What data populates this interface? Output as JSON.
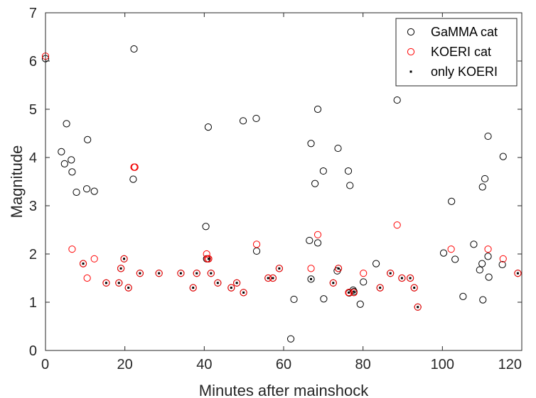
{
  "chart_data": {
    "type": "scatter",
    "xlabel": "Minutes after mainshock",
    "ylabel": "Magnitude",
    "xlim": [
      0,
      120
    ],
    "ylim": [
      0,
      7
    ],
    "xticks": [
      0,
      20,
      40,
      60,
      80,
      100,
      120
    ],
    "yticks": [
      0,
      1,
      2,
      3,
      4,
      5,
      6,
      7
    ],
    "grid": false,
    "legend_position": "top-right",
    "series": [
      {
        "name": "GaMMA cat",
        "marker": "open-circle",
        "color": "#000000",
        "points": [
          [
            0,
            6.05
          ],
          [
            4,
            4.12
          ],
          [
            4.8,
            3.87
          ],
          [
            5.3,
            4.7
          ],
          [
            6.5,
            3.95
          ],
          [
            6.7,
            3.7
          ],
          [
            7.8,
            3.28
          ],
          [
            9.5,
            1.8
          ],
          [
            10.4,
            3.35
          ],
          [
            10.6,
            4.37
          ],
          [
            12.3,
            3.3
          ],
          [
            15.3,
            1.4
          ],
          [
            18.5,
            1.4
          ],
          [
            19,
            1.7
          ],
          [
            19.8,
            1.9
          ],
          [
            20.9,
            1.3
          ],
          [
            22.1,
            3.55
          ],
          [
            22.3,
            6.25
          ],
          [
            22.5,
            3.8
          ],
          [
            23.8,
            1.6
          ],
          [
            28.6,
            1.6
          ],
          [
            34.1,
            1.6
          ],
          [
            37.2,
            1.3
          ],
          [
            38.1,
            1.6
          ],
          [
            40.4,
            2.57
          ],
          [
            40.6,
            1.9
          ],
          [
            41,
            4.63
          ],
          [
            41.1,
            1.9
          ],
          [
            41.7,
            1.6
          ],
          [
            43.4,
            1.4
          ],
          [
            46.8,
            1.3
          ],
          [
            48.2,
            1.4
          ],
          [
            49.8,
            4.76
          ],
          [
            49.9,
            1.2
          ],
          [
            53.1,
            4.81
          ],
          [
            53.2,
            2.06
          ],
          [
            56.1,
            1.5
          ],
          [
            57.3,
            1.5
          ],
          [
            58.9,
            1.7
          ],
          [
            61.8,
            0.24
          ],
          [
            62.6,
            1.06
          ],
          [
            66.5,
            2.28
          ],
          [
            66.9,
            4.29
          ],
          [
            66.9,
            1.48
          ],
          [
            67.9,
            3.46
          ],
          [
            68.6,
            5.0
          ],
          [
            68.6,
            2.23
          ],
          [
            70,
            3.72
          ],
          [
            70.1,
            1.07
          ],
          [
            72.5,
            1.4
          ],
          [
            73.5,
            1.65
          ],
          [
            73.7,
            4.19
          ],
          [
            73.8,
            1.7
          ],
          [
            76.3,
            3.72
          ],
          [
            76.4,
            1.2
          ],
          [
            76.5,
            1.19
          ],
          [
            76.7,
            3.42
          ],
          [
            77.5,
            1.25
          ],
          [
            77.7,
            1.22
          ],
          [
            79.3,
            0.96
          ],
          [
            80.1,
            1.42
          ],
          [
            83.3,
            1.8
          ],
          [
            84.3,
            1.3
          ],
          [
            86.9,
            1.6
          ],
          [
            88.6,
            5.19
          ],
          [
            89.8,
            1.5
          ],
          [
            91.9,
            1.5
          ],
          [
            92.9,
            1.3
          ],
          [
            93.8,
            0.9
          ],
          [
            100.3,
            2.02
          ],
          [
            102.3,
            3.09
          ],
          [
            103.2,
            1.89
          ],
          [
            105.2,
            1.12
          ],
          [
            107.9,
            2.2
          ],
          [
            109.4,
            1.67
          ],
          [
            110,
            1.8
          ],
          [
            110.1,
            3.39
          ],
          [
            110.2,
            1.05
          ],
          [
            110.7,
            3.56
          ],
          [
            111.5,
            4.44
          ],
          [
            111.5,
            1.95
          ],
          [
            111.7,
            1.52
          ],
          [
            115.1,
            1.78
          ],
          [
            115.3,
            4.02
          ],
          [
            119,
            1.6
          ]
        ]
      },
      {
        "name": "KOERI cat",
        "marker": "open-circle",
        "color": "#ff0000",
        "points": [
          [
            0,
            6.1
          ],
          [
            6.7,
            2.1
          ],
          [
            9.5,
            1.8
          ],
          [
            10.5,
            1.5
          ],
          [
            12.3,
            1.9
          ],
          [
            15.3,
            1.4
          ],
          [
            18.5,
            1.4
          ],
          [
            19,
            1.7
          ],
          [
            19.8,
            1.9
          ],
          [
            20.9,
            1.3
          ],
          [
            22.3,
            3.8
          ],
          [
            22.5,
            3.8
          ],
          [
            23.8,
            1.6
          ],
          [
            28.6,
            1.6
          ],
          [
            34.1,
            1.6
          ],
          [
            37.2,
            1.3
          ],
          [
            38.1,
            1.6
          ],
          [
            40.6,
            2.0
          ],
          [
            40.8,
            1.9
          ],
          [
            41.1,
            1.9
          ],
          [
            41.7,
            1.6
          ],
          [
            43.4,
            1.4
          ],
          [
            46.8,
            1.3
          ],
          [
            48.2,
            1.4
          ],
          [
            49.9,
            1.2
          ],
          [
            53.2,
            2.2
          ],
          [
            56.1,
            1.5
          ],
          [
            57.3,
            1.5
          ],
          [
            58.9,
            1.7
          ],
          [
            66.9,
            1.7
          ],
          [
            68.6,
            2.4
          ],
          [
            72.5,
            1.4
          ],
          [
            73.8,
            1.7
          ],
          [
            76.4,
            1.2
          ],
          [
            76.5,
            1.2
          ],
          [
            77.7,
            1.2
          ],
          [
            80.1,
            1.6
          ],
          [
            84.3,
            1.3
          ],
          [
            86.9,
            1.6
          ],
          [
            88.6,
            2.6
          ],
          [
            89.8,
            1.5
          ],
          [
            91.9,
            1.5
          ],
          [
            92.9,
            1.3
          ],
          [
            93.8,
            0.9
          ],
          [
            102.2,
            2.1
          ],
          [
            111.5,
            2.1
          ],
          [
            115.3,
            1.9
          ],
          [
            119,
            1.6
          ]
        ]
      },
      {
        "name": "only KOERI",
        "marker": "dot",
        "color": "#000000",
        "points": [
          [
            9.5,
            1.8
          ],
          [
            15.3,
            1.4
          ],
          [
            18.5,
            1.4
          ],
          [
            19,
            1.7
          ],
          [
            19.8,
            1.9
          ],
          [
            20.9,
            1.3
          ],
          [
            23.8,
            1.6
          ],
          [
            28.6,
            1.6
          ],
          [
            34.1,
            1.6
          ],
          [
            37.2,
            1.3
          ],
          [
            38.1,
            1.6
          ],
          [
            41.1,
            1.9
          ],
          [
            41.7,
            1.6
          ],
          [
            43.4,
            1.4
          ],
          [
            46.8,
            1.3
          ],
          [
            48.2,
            1.4
          ],
          [
            49.9,
            1.2
          ],
          [
            56.1,
            1.5
          ],
          [
            57.3,
            1.5
          ],
          [
            58.9,
            1.7
          ],
          [
            66.9,
            1.48
          ],
          [
            72.5,
            1.4
          ],
          [
            73.8,
            1.7
          ],
          [
            76.4,
            1.2
          ],
          [
            77.7,
            1.22
          ],
          [
            84.3,
            1.3
          ],
          [
            86.9,
            1.6
          ],
          [
            89.8,
            1.5
          ],
          [
            91.9,
            1.5
          ],
          [
            92.9,
            1.3
          ],
          [
            93.8,
            0.9
          ],
          [
            119,
            1.6
          ]
        ]
      }
    ]
  }
}
